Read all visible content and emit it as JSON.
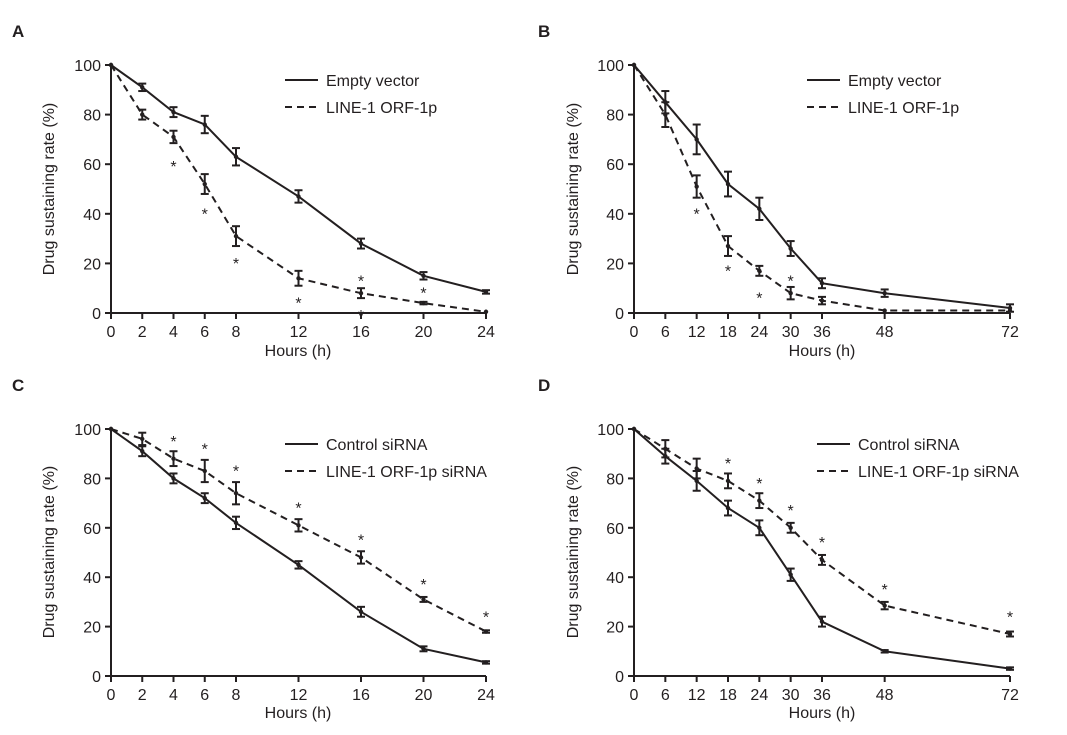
{
  "chart_data": [
    {
      "panel": "A",
      "type": "line",
      "xlabel": "Hours (h)",
      "ylabel": "Drug sustaining rate (%)",
      "xlim": [
        0,
        24
      ],
      "ylim": [
        0,
        100
      ],
      "xticks": [
        "0",
        "2",
        "4",
        "6",
        "8",
        "12",
        "16",
        "20",
        "24"
      ],
      "yticks": [
        "0",
        "20",
        "40",
        "60",
        "80",
        "100"
      ],
      "legend_position": "top-right",
      "series": [
        {
          "name": "Empty vector",
          "style": "solid",
          "x": [
            0,
            2,
            4,
            6,
            8,
            12,
            16,
            20,
            24
          ],
          "y": [
            100,
            91,
            81,
            76,
            63,
            47,
            28,
            15,
            8.5
          ],
          "err": [
            0,
            1.5,
            2,
            3.5,
            3.5,
            2.5,
            2,
            1.5,
            0.7
          ]
        },
        {
          "name": "LINE-1 ORF-1p",
          "style": "dashed",
          "x": [
            0,
            2,
            4,
            6,
            8,
            12,
            16,
            20,
            24
          ],
          "y": [
            100,
            80,
            71,
            52,
            31,
            14,
            8,
            4,
            0.5
          ],
          "err": [
            0,
            2,
            2.5,
            4,
            4,
            3,
            2,
            0.5,
            0
          ]
        }
      ],
      "annotations": [
        {
          "text": "*",
          "x": 4,
          "y": 60
        },
        {
          "text": "*",
          "x": 6,
          "y": 41
        },
        {
          "text": "*",
          "x": 8,
          "y": 21
        },
        {
          "text": "*",
          "x": 12,
          "y": 5
        },
        {
          "text": "*",
          "x": 16,
          "y": 14
        },
        {
          "text": "*",
          "x": 16,
          "y": 0
        },
        {
          "text": "*",
          "x": 20,
          "y": 9
        }
      ]
    },
    {
      "panel": "B",
      "type": "line",
      "xlabel": "Hours (h)",
      "ylabel": "Drug sustaining rate (%)",
      "xlim": [
        0,
        72
      ],
      "ylim": [
        0,
        100
      ],
      "xticks": [
        "0",
        "6",
        "12",
        "18",
        "24",
        "30",
        "36",
        "48",
        "72"
      ],
      "yticks": [
        "0",
        "20",
        "40",
        "60",
        "80",
        "100"
      ],
      "legend_position": "top-right",
      "series": [
        {
          "name": "Empty vector",
          "style": "solid",
          "x": [
            0,
            6,
            12,
            18,
            24,
            30,
            36,
            48,
            72
          ],
          "y": [
            100,
            85,
            70,
            52,
            42,
            26,
            12,
            8,
            2
          ],
          "err": [
            0,
            4.5,
            6,
            5,
            4.5,
            3,
            2,
            1.5,
            1.5
          ]
        },
        {
          "name": "LINE-1 ORF-1p",
          "style": "dashed",
          "x": [
            0,
            6,
            12,
            18,
            24,
            30,
            36,
            48,
            72
          ],
          "y": [
            100,
            80,
            51,
            27,
            17,
            8,
            5,
            1,
            1
          ],
          "err": [
            0,
            5,
            4.5,
            4,
            2,
            2.5,
            1.5,
            0,
            0
          ]
        }
      ],
      "annotations": [
        {
          "text": "*",
          "x": 12,
          "y": 41
        },
        {
          "text": "*",
          "x": 18,
          "y": 18
        },
        {
          "text": "*",
          "x": 24,
          "y": 7
        },
        {
          "text": "*",
          "x": 30,
          "y": 14
        }
      ]
    },
    {
      "panel": "C",
      "type": "line",
      "xlabel": "Hours (h)",
      "ylabel": "Drug sustaining rate (%)",
      "xlim": [
        0,
        24
      ],
      "ylim": [
        0,
        100
      ],
      "xticks": [
        "0",
        "2",
        "4",
        "6",
        "8",
        "12",
        "16",
        "20",
        "24"
      ],
      "yticks": [
        "0",
        "20",
        "40",
        "60",
        "80",
        "100"
      ],
      "legend_position": "top-right",
      "series": [
        {
          "name": "Control siRNA",
          "style": "solid",
          "x": [
            0,
            2,
            4,
            6,
            8,
            12,
            16,
            20,
            24
          ],
          "y": [
            100,
            91,
            80,
            72,
            62,
            45,
            26,
            11,
            5.5
          ],
          "err": [
            0,
            2,
            2,
            2,
            2.5,
            1.5,
            2,
            1,
            0.5
          ]
        },
        {
          "name": "LINE-1 ORF-1p siRNA",
          "style": "dashed",
          "x": [
            0,
            2,
            4,
            6,
            8,
            12,
            16,
            20,
            24
          ],
          "y": [
            100,
            96,
            88,
            83,
            74,
            61,
            48,
            31,
            18
          ],
          "err": [
            0,
            2.5,
            3,
            4.5,
            4.5,
            2.5,
            2.5,
            1,
            0.5
          ]
        }
      ],
      "annotations": [
        {
          "text": "*",
          "x": 4,
          "y": 96
        },
        {
          "text": "*",
          "x": 6,
          "y": 93
        },
        {
          "text": "*",
          "x": 8,
          "y": 84
        },
        {
          "text": "*",
          "x": 12,
          "y": 69
        },
        {
          "text": "*",
          "x": 16,
          "y": 56
        },
        {
          "text": "*",
          "x": 20,
          "y": 38
        },
        {
          "text": "*",
          "x": 24,
          "y": 25
        }
      ]
    },
    {
      "panel": "D",
      "type": "line",
      "xlabel": "Hours (h)",
      "ylabel": "Drug sustaining rate (%)",
      "xlim": [
        0,
        72
      ],
      "ylim": [
        0,
        100
      ],
      "xticks": [
        "0",
        "6",
        "12",
        "18",
        "24",
        "30",
        "36",
        "48",
        "72"
      ],
      "yticks": [
        "0",
        "20",
        "40",
        "60",
        "80",
        "100"
      ],
      "legend_position": "top-right",
      "series": [
        {
          "name": "Control siRNA",
          "style": "solid",
          "x": [
            0,
            6,
            12,
            18,
            24,
            30,
            36,
            48,
            72
          ],
          "y": [
            100,
            89,
            79,
            68,
            60,
            41,
            22,
            10,
            3
          ],
          "err": [
            0,
            3,
            4,
            3,
            3,
            2.5,
            2,
            0.5,
            0.5
          ]
        },
        {
          "name": "LINE-1 ORF-1p siRNA",
          "style": "dashed",
          "x": [
            0,
            6,
            12,
            18,
            24,
            30,
            36,
            48,
            72
          ],
          "y": [
            100,
            92,
            84,
            79,
            71,
            60,
            47,
            28.5,
            17
          ],
          "err": [
            0,
            3.5,
            4,
            3,
            3,
            2,
            2,
            1.5,
            1
          ]
        }
      ],
      "annotations": [
        {
          "text": "*",
          "x": 18,
          "y": 87
        },
        {
          "text": "*",
          "x": 24,
          "y": 79
        },
        {
          "text": "*",
          "x": 30,
          "y": 68
        },
        {
          "text": "*",
          "x": 36,
          "y": 55
        },
        {
          "text": "*",
          "x": 48,
          "y": 36
        },
        {
          "text": "*",
          "x": 72,
          "y": 25
        }
      ]
    }
  ]
}
